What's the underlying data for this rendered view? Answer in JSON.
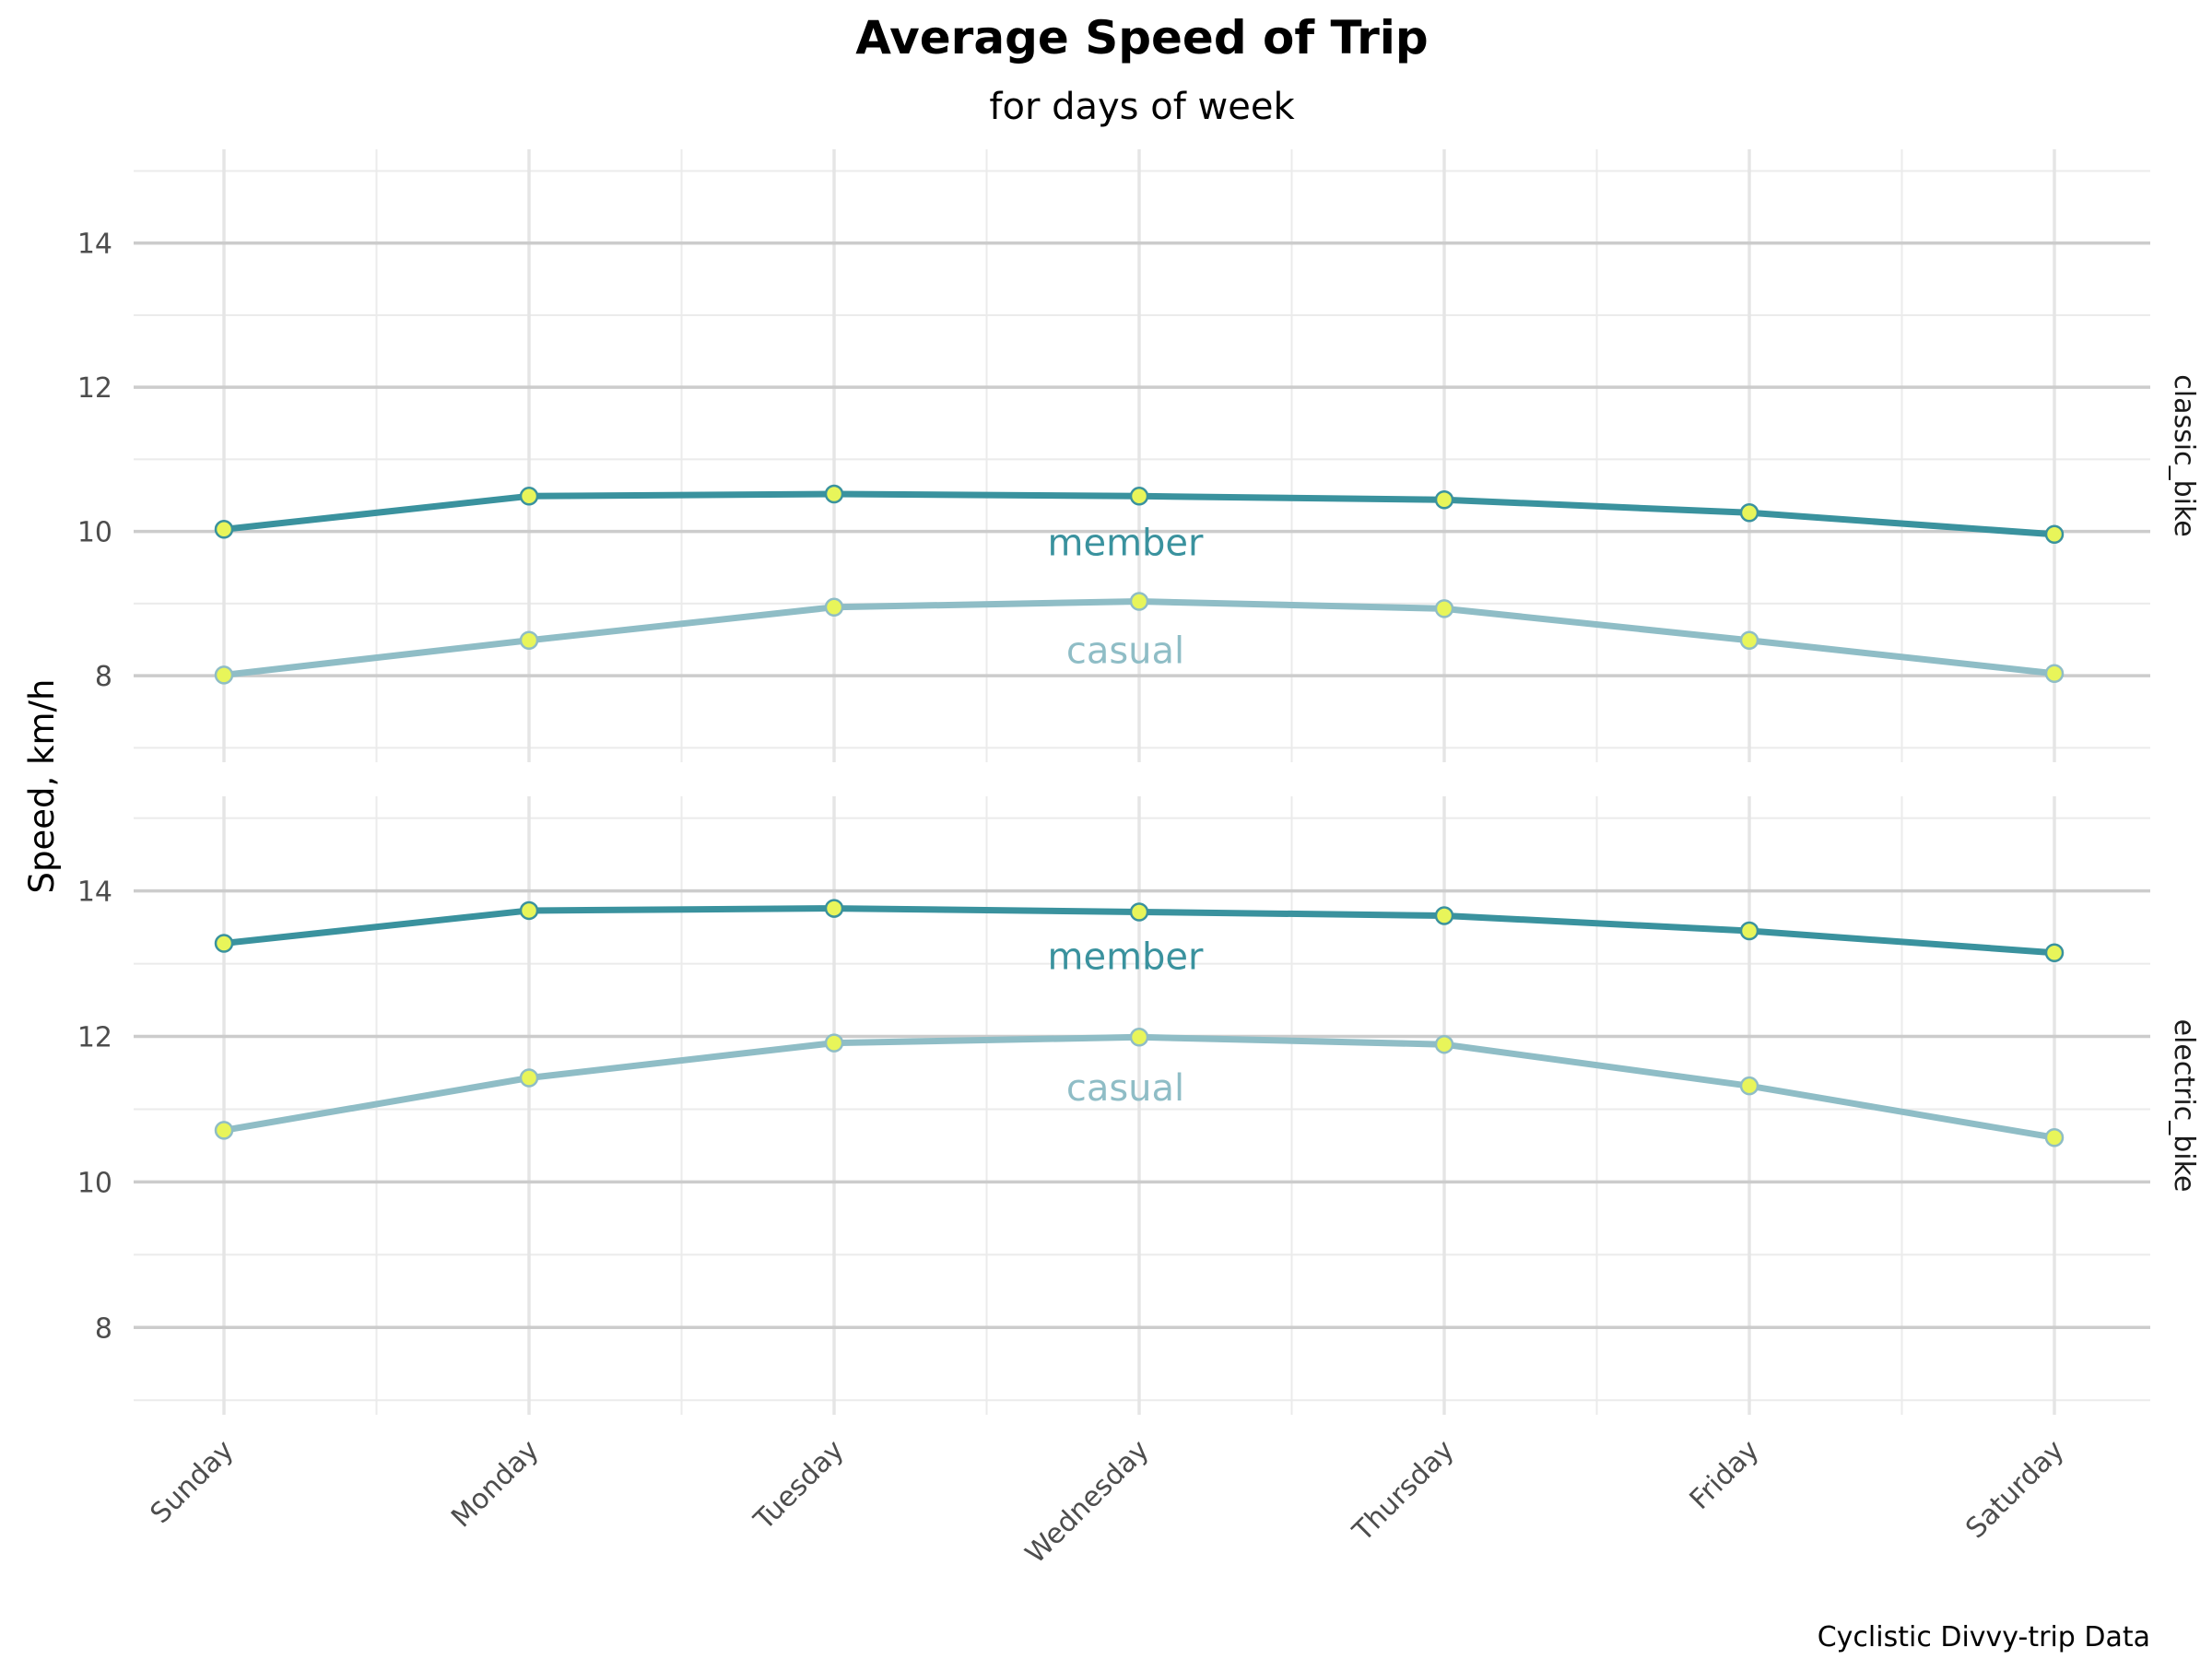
{
  "chart_data": {
    "type": "line",
    "title": "Average Speed of Trip",
    "subtitle": "for days of week",
    "ylabel": "Speed, km/h",
    "xlabel": "",
    "caption": "Cyclistic Divvy-trip Data",
    "grid": true,
    "categories": [
      "Sunday",
      "Monday",
      "Tuesday",
      "Wednesday",
      "Thursday",
      "Friday",
      "Saturday"
    ],
    "colors": {
      "member": "#3a929e",
      "casual": "#8fbdc6",
      "point_fill": "#e8f55a"
    },
    "panels": [
      {
        "facet": "classic_bike",
        "ylim": [
          6.8,
          15.3
        ],
        "yticks": [
          8,
          10,
          12,
          14
        ],
        "series": [
          {
            "name": "member",
            "values": [
              10.03,
              10.49,
              10.52,
              10.49,
              10.44,
              10.26,
              9.96
            ]
          },
          {
            "name": "casual",
            "values": [
              8.01,
              8.49,
              8.95,
              9.03,
              8.93,
              8.49,
              8.03
            ]
          }
        ],
        "annotations": [
          {
            "text": "member",
            "x": 3,
            "y": 9.85,
            "series": "member"
          },
          {
            "text": "casual",
            "x": 3,
            "y": 8.35,
            "series": "casual"
          }
        ]
      },
      {
        "facet": "electric_bike",
        "ylim": [
          6.8,
          15.3
        ],
        "yticks": [
          8,
          10,
          12,
          14
        ],
        "series": [
          {
            "name": "member",
            "values": [
              13.28,
              13.73,
              13.76,
              13.71,
              13.66,
              13.45,
              13.15
            ]
          },
          {
            "name": "casual",
            "values": [
              10.71,
              11.43,
              11.91,
              11.99,
              11.89,
              11.32,
              10.61
            ]
          }
        ],
        "annotations": [
          {
            "text": "member",
            "x": 3,
            "y": 13.1,
            "series": "member"
          },
          {
            "text": "casual",
            "x": 3,
            "y": 11.3,
            "series": "casual"
          }
        ]
      }
    ]
  }
}
